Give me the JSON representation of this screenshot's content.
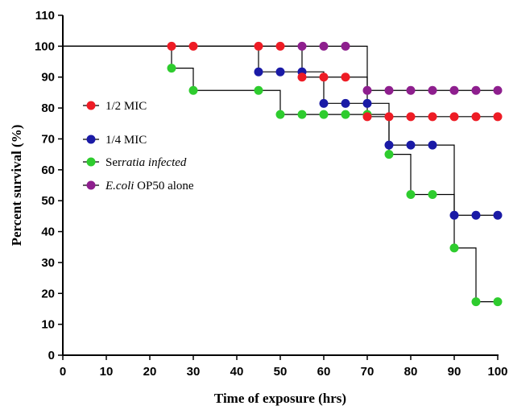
{
  "chart_data": {
    "type": "line",
    "subtype": "kaplan-meier step survival",
    "xlabel": "Time of exposure (hrs)",
    "ylabel": "Percent survival (%)",
    "xlim": [
      0,
      100
    ],
    "ylim": [
      0,
      110
    ],
    "xticks": [
      0,
      10,
      20,
      30,
      40,
      50,
      60,
      70,
      80,
      90,
      100
    ],
    "yticks": [
      0,
      10,
      20,
      30,
      40,
      50,
      60,
      70,
      80,
      90,
      100,
      110
    ],
    "grid": false,
    "legend_position": "left-middle",
    "legend": [
      {
        "label": "1/2 MIC",
        "color": "#ee1c25"
      },
      {
        "label": "1/4 MIC",
        "color": "#1a1aa6"
      },
      {
        "label_parts": [
          "Ser",
          "ratia infected"
        ],
        "label_italic": [
          false,
          true
        ],
        "color": "#2ecc2e"
      },
      {
        "label_parts": [
          "E.coli",
          " OP50 alone"
        ],
        "label_italic": [
          true,
          false
        ],
        "color": "#8e1f8e"
      }
    ],
    "series": [
      {
        "name": "1/2 MIC",
        "color": "#ee1c25",
        "steps": [
          [
            0,
            100
          ],
          [
            55,
            90
          ],
          [
            70,
            77.2
          ],
          [
            100,
            77.2
          ]
        ],
        "markers": [
          [
            25,
            100
          ],
          [
            30,
            100
          ],
          [
            45,
            100
          ],
          [
            50,
            100
          ],
          [
            55,
            90
          ],
          [
            60,
            90
          ],
          [
            65,
            90
          ],
          [
            70,
            77.2
          ],
          [
            75,
            77.2
          ],
          [
            80,
            77.2
          ],
          [
            85,
            77.2
          ],
          [
            90,
            77.2
          ],
          [
            95,
            77.2
          ],
          [
            100,
            77.2
          ]
        ]
      },
      {
        "name": "1/4 MIC",
        "color": "#1a1aa6",
        "steps": [
          [
            0,
            100
          ],
          [
            45,
            91.7
          ],
          [
            60,
            81.5
          ],
          [
            75,
            68
          ],
          [
            90,
            45.3
          ],
          [
            100,
            45.3
          ]
        ],
        "markers": [
          [
            45,
            91.7
          ],
          [
            50,
            91.7
          ],
          [
            55,
            91.7
          ],
          [
            60,
            81.5
          ],
          [
            65,
            81.5
          ],
          [
            70,
            81.5
          ],
          [
            75,
            68
          ],
          [
            80,
            68
          ],
          [
            85,
            68
          ],
          [
            90,
            45.3
          ],
          [
            95,
            45.3
          ],
          [
            100,
            45.3
          ]
        ]
      },
      {
        "name": "Serratia infected",
        "color": "#2ecc2e",
        "steps": [
          [
            0,
            100
          ],
          [
            25,
            92.9
          ],
          [
            30,
            85.7
          ],
          [
            50,
            77.9
          ],
          [
            75,
            65
          ],
          [
            80,
            52
          ],
          [
            90,
            34.7
          ],
          [
            95,
            17.3
          ],
          [
            100,
            17.3
          ]
        ],
        "markers": [
          [
            25,
            92.9
          ],
          [
            30,
            85.7
          ],
          [
            45,
            85.7
          ],
          [
            50,
            77.9
          ],
          [
            55,
            77.9
          ],
          [
            60,
            77.9
          ],
          [
            65,
            77.9
          ],
          [
            70,
            77.9
          ],
          [
            75,
            65
          ],
          [
            80,
            52
          ],
          [
            85,
            52
          ],
          [
            90,
            34.7
          ],
          [
            95,
            17.3
          ],
          [
            100,
            17.3
          ]
        ]
      },
      {
        "name": "E.coli OP50 alone",
        "color": "#8e1f8e",
        "steps": [
          [
            0,
            100
          ],
          [
            70,
            85.7
          ],
          [
            100,
            85.7
          ]
        ],
        "markers": [
          [
            55,
            100
          ],
          [
            60,
            100
          ],
          [
            65,
            100
          ],
          [
            70,
            85.7
          ],
          [
            75,
            85.7
          ],
          [
            80,
            85.7
          ],
          [
            85,
            85.7
          ],
          [
            90,
            85.7
          ],
          [
            95,
            85.7
          ],
          [
            100,
            85.7
          ]
        ]
      }
    ]
  }
}
